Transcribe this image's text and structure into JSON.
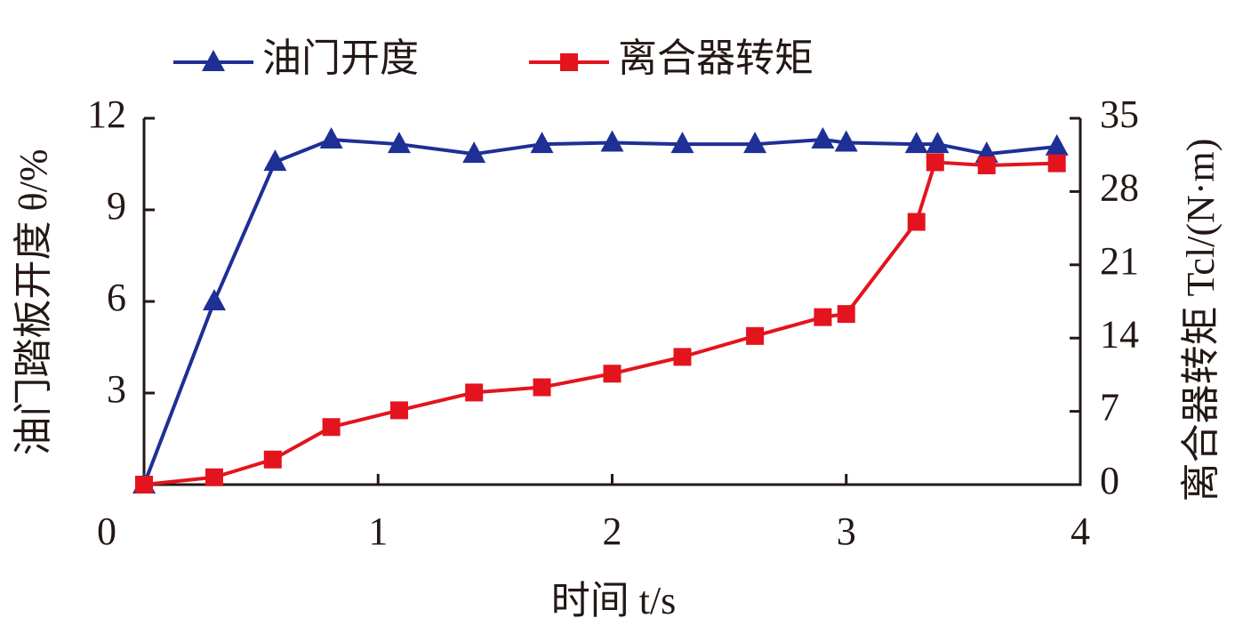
{
  "chart_data": {
    "type": "line",
    "xlabel": "时间 t/s",
    "ylabel": "油门踏板开度 θ/%",
    "y2label": "离合器转矩 Tcl/(N·m)",
    "xlim": [
      0,
      4
    ],
    "xticks": [
      0,
      1,
      2,
      3,
      4
    ],
    "ylim": [
      0,
      12
    ],
    "yticks": [
      3,
      6,
      9,
      12
    ],
    "y2lim": [
      0,
      35
    ],
    "y2ticks": [
      0,
      7,
      14,
      21,
      28,
      35
    ],
    "legend": "top",
    "series": [
      {
        "name": "油门开度",
        "color": "#1e2f96",
        "marker": "triangle",
        "x": [
          0,
          0.3,
          0.56,
          0.8,
          1.09,
          1.41,
          1.7,
          2.0,
          2.3,
          2.61,
          2.9,
          3.0,
          3.3,
          3.39,
          3.6,
          3.9
        ],
        "values": [
          0,
          6.0,
          10.57,
          11.3,
          11.15,
          10.83,
          11.15,
          11.2,
          11.15,
          11.15,
          11.3,
          11.2,
          11.15,
          11.15,
          10.83,
          11.07
        ]
      },
      {
        "name": "离合器转矩",
        "color": "#e3141e",
        "marker": "square",
        "axis": "y2",
        "x": [
          0,
          0.3,
          0.55,
          0.8,
          1.09,
          1.41,
          1.7,
          2.0,
          2.3,
          2.61,
          2.9,
          3.0,
          3.3,
          3.38,
          3.6,
          3.9
        ],
        "values": [
          0,
          0.7,
          2.4,
          5.5,
          7.1,
          8.8,
          9.3,
          10.6,
          12.2,
          14.2,
          16.0,
          16.3,
          25.1,
          30.8,
          30.5,
          30.7
        ]
      }
    ]
  }
}
